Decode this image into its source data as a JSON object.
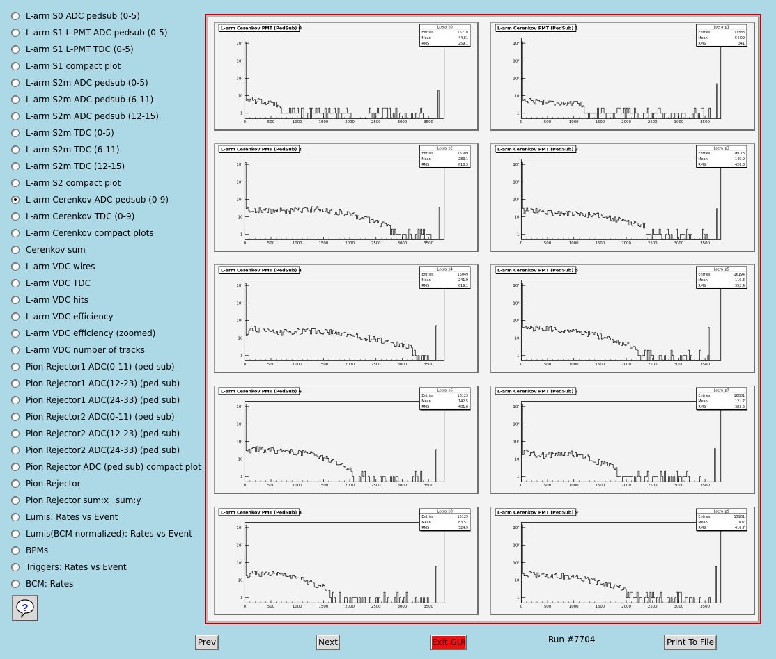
{
  "menu": {
    "selected_index": 11,
    "items": [
      "L-arm S0 ADC pedsub (0-5)",
      "L-arm S1 L-PMT ADC pedsub (0-5)",
      "L-arm S1 L-PMT TDC (0-5)",
      "L-arm S1 compact plot",
      "L-arm S2m ADC pedsub (0-5)",
      "L-arm S2m ADC pedsub (6-11)",
      "L-arm S2m ADC pedsub (12-15)",
      "L-arm S2m TDC (0-5)",
      "L-arm S2m TDC (6-11)",
      "L-arm S2m TDC (12-15)",
      "L-arm S2 compact plot",
      "L-arm Cerenkov ADC pedsub (0-9)",
      "L-arm Cerenkov TDC (0-9)",
      "L-arm Cerenkov compact plots",
      "Cerenkov sum",
      "L-arm VDC wires",
      "L-arm VDC TDC",
      "L-arm VDC hits",
      "L-arm VDC efficiency",
      "L-arm VDC efficiency (zoomed)",
      "L-arm VDC number of tracks",
      "Pion Rejector1 ADC(0-11) (ped sub)",
      "Pion Rejector1 ADC(12-23) (ped sub)",
      "Pion Rejector1 ADC(24-33) (ped sub)",
      "Pion Rejector2 ADC(0-11) (ped sub)",
      "Pion Rejector2 ADC(12-23) (ped sub)",
      "Pion Rejector2 ADC(24-33) (ped sub)",
      "Pion Rejector ADC (ped sub) compact plot",
      "Pion Rejector",
      "Pion Rejector sum:x _sum:y",
      "Lumis: Rates vs Event",
      "Lumis(BCM normalized): Rates vs Event",
      "BPMs",
      "Triggers: Rates vs Event",
      "BCM: Rates"
    ]
  },
  "help": {
    "icon": "question-mark-icon",
    "glyph": "?"
  },
  "buttons": {
    "prev": "Prev",
    "next": "Next",
    "exit": "Exit GUI",
    "print": "Print To File"
  },
  "run_label": "Run #7704",
  "colors": {
    "background": "#add8e6",
    "frame_border": "#c00000",
    "exit_button": "#ee1111"
  },
  "chart_data": [
    {
      "type": "histogram",
      "title": "L-arm Cerenkov PMT (PedSub) 0",
      "stats": {
        "name": "Lcera_p0",
        "entries_label": "Entries",
        "entries": "16218",
        "mean_label": "Mean",
        "mean": "44.81",
        "rms_label": "RMS",
        "rms": "259.1"
      },
      "y_log": true,
      "ylim": [
        0.5,
        20000
      ],
      "xlim": [
        0,
        3800
      ],
      "x_ticks": [
        0,
        500,
        1000,
        1500,
        2000,
        2500,
        3000,
        3500
      ],
      "y_ticks": [
        1,
        10,
        100,
        1000,
        10000
      ],
      "y_tick_labels": [
        "1",
        "10",
        "10²",
        "10³",
        "10⁴"
      ],
      "profile": [
        [
          0,
          8
        ],
        [
          100,
          6
        ],
        [
          400,
          4
        ],
        [
          700,
          3
        ],
        [
          1200,
          2
        ],
        [
          1700,
          1.8
        ],
        [
          2200,
          1.6
        ],
        [
          2700,
          1.4
        ],
        [
          3200,
          1.2
        ],
        [
          3500,
          1
        ]
      ],
      "spike": {
        "x": 3680,
        "y": 20
      }
    },
    {
      "type": "histogram",
      "title": "L-arm Cerenkov PMT (PedSub) 1",
      "stats": {
        "name": "Lcera_p1",
        "entries_label": "Entries",
        "entries": "17388",
        "mean_label": "Mean",
        "mean": "54.09",
        "rms_label": "RMS",
        "rms": "341"
      },
      "y_log": true,
      "ylim": [
        0.5,
        20000
      ],
      "xlim": [
        0,
        3800
      ],
      "x_ticks": [
        0,
        500,
        1000,
        1500,
        2000,
        2500,
        3000,
        3500
      ],
      "y_ticks": [
        1,
        10,
        100,
        1000,
        10000
      ],
      "y_tick_labels": [
        "1",
        "10",
        "10²",
        "10³",
        "10⁴"
      ],
      "profile": [
        [
          0,
          6
        ],
        [
          200,
          5
        ],
        [
          700,
          4
        ],
        [
          1200,
          3
        ],
        [
          1700,
          2.5
        ],
        [
          2200,
          2
        ],
        [
          2700,
          1.8
        ],
        [
          3200,
          1.5
        ],
        [
          3500,
          1.2
        ]
      ],
      "spike": {
        "x": 3720,
        "y": 50
      }
    },
    {
      "type": "histogram",
      "title": "L-arm Cerenkov PMT (PedSub) 2",
      "stats": {
        "name": "Lcera_p2",
        "entries_label": "Entries",
        "entries": "16309",
        "mean_label": "Mean",
        "mean": "283.1",
        "rms_label": "RMS",
        "rms": "618.3"
      },
      "y_log": true,
      "ylim": [
        0.5,
        20000
      ],
      "xlim": [
        0,
        3800
      ],
      "x_ticks": [
        0,
        500,
        1000,
        1500,
        2000,
        2500,
        3000,
        3500
      ],
      "y_ticks": [
        1,
        10,
        100,
        1000,
        10000
      ],
      "y_tick_labels": [
        "1",
        "10",
        "10²",
        "10³",
        "10⁴"
      ],
      "profile": [
        [
          0,
          25
        ],
        [
          150,
          25
        ],
        [
          500,
          22
        ],
        [
          1000,
          22
        ],
        [
          1400,
          28
        ],
        [
          1800,
          18
        ],
        [
          2200,
          10
        ],
        [
          2600,
          4
        ],
        [
          3000,
          2
        ],
        [
          3400,
          1.3
        ],
        [
          3600,
          1
        ]
      ],
      "spike": {
        "x": 3700,
        "y": 35
      }
    },
    {
      "type": "histogram",
      "title": "L-arm Cerenkov PMT (PedSub) 3",
      "stats": {
        "name": "Lcera_p3",
        "entries_label": "Entries",
        "entries": "16073",
        "mean_label": "Mean",
        "mean": "145.9",
        "rms_label": "RMS",
        "rms": "426.3"
      },
      "y_log": true,
      "ylim": [
        0.5,
        20000
      ],
      "xlim": [
        0,
        3800
      ],
      "x_ticks": [
        0,
        500,
        1000,
        1500,
        2000,
        2500,
        3000,
        3500
      ],
      "y_ticks": [
        1,
        10,
        100,
        1000,
        10000
      ],
      "y_tick_labels": [
        "1",
        "10",
        "10²",
        "10³",
        "10⁴"
      ],
      "profile": [
        [
          0,
          20
        ],
        [
          150,
          25
        ],
        [
          500,
          18
        ],
        [
          1000,
          15
        ],
        [
          1500,
          12
        ],
        [
          2000,
          5
        ],
        [
          2500,
          2.5
        ],
        [
          3000,
          1.5
        ],
        [
          3400,
          1.1
        ]
      ],
      "spike": {
        "x": 3720,
        "y": 30
      }
    },
    {
      "type": "histogram",
      "title": "L-arm Cerenkov PMT (PedSub) 4",
      "stats": {
        "name": "Lcera_p4",
        "entries_label": "Entries",
        "entries": "16049",
        "mean_label": "Mean",
        "mean": "241.9",
        "rms_label": "RMS",
        "rms": "619.1"
      },
      "y_log": true,
      "ylim": [
        0.5,
        20000
      ],
      "xlim": [
        0,
        3800
      ],
      "x_ticks": [
        0,
        500,
        1000,
        1500,
        2000,
        2500,
        3000,
        3500
      ],
      "y_ticks": [
        1,
        10,
        100,
        1000,
        10000
      ],
      "y_tick_labels": [
        "1",
        "10",
        "10²",
        "10³",
        "10⁴"
      ],
      "profile": [
        [
          0,
          12
        ],
        [
          150,
          40
        ],
        [
          300,
          25
        ],
        [
          700,
          20
        ],
        [
          1200,
          25
        ],
        [
          1700,
          20
        ],
        [
          2200,
          12
        ],
        [
          2700,
          6
        ],
        [
          3200,
          3
        ],
        [
          3500,
          2
        ]
      ],
      "spike": {
        "x": 3640,
        "y": 50
      }
    },
    {
      "type": "histogram",
      "title": "L-arm Cerenkov PMT (PedSub) 5",
      "stats": {
        "name": "Lcera_p5",
        "entries_label": "Entries",
        "entries": "16194",
        "mean_label": "Mean",
        "mean": "116.3",
        "rms_label": "RMS",
        "rms": "352.4"
      },
      "y_log": true,
      "ylim": [
        0.5,
        20000
      ],
      "xlim": [
        0,
        3800
      ],
      "x_ticks": [
        0,
        500,
        1000,
        1500,
        2000,
        2500,
        3000,
        3500
      ],
      "y_ticks": [
        1,
        10,
        100,
        1000,
        10000
      ],
      "y_tick_labels": [
        "1",
        "10",
        "10²",
        "10³",
        "10⁴"
      ],
      "profile": [
        [
          0,
          40
        ],
        [
          200,
          35
        ],
        [
          600,
          30
        ],
        [
          1000,
          25
        ],
        [
          1400,
          15
        ],
        [
          1800,
          6
        ],
        [
          2200,
          3
        ],
        [
          2700,
          1.5
        ],
        [
          3200,
          1.1
        ]
      ],
      "spike": {
        "x": 3560,
        "y": 40
      }
    },
    {
      "type": "histogram",
      "title": "L-arm Cerenkov PMT (PedSub) 6",
      "stats": {
        "name": "Lcera_p6",
        "entries_label": "Entries",
        "entries": "16123",
        "mean_label": "Mean",
        "mean": "142.5",
        "rms_label": "RMS",
        "rms": "481.6"
      },
      "y_log": true,
      "ylim": [
        0.5,
        20000
      ],
      "xlim": [
        0,
        3800
      ],
      "x_ticks": [
        0,
        500,
        1000,
        1500,
        2000,
        2500,
        3000,
        3500
      ],
      "y_ticks": [
        1,
        10,
        100,
        1000,
        10000
      ],
      "y_tick_labels": [
        "1",
        "10",
        "10²",
        "10³",
        "10⁴"
      ],
      "profile": [
        [
          0,
          20
        ],
        [
          150,
          35
        ],
        [
          600,
          30
        ],
        [
          1000,
          25
        ],
        [
          1400,
          15
        ],
        [
          1800,
          5
        ],
        [
          2200,
          2
        ],
        [
          2700,
          1.3
        ],
        [
          3200,
          1.1
        ]
      ],
      "spike": {
        "x": 3640,
        "y": 35
      }
    },
    {
      "type": "histogram",
      "title": "L-arm Cerenkov PMT (PedSub) 7",
      "stats": {
        "name": "Lcera_p7",
        "entries_label": "Entries",
        "entries": "16081",
        "mean_label": "Mean",
        "mean": "121.7",
        "rms_label": "RMS",
        "rms": "383.5"
      },
      "y_log": true,
      "ylim": [
        0.5,
        20000
      ],
      "xlim": [
        0,
        3800
      ],
      "x_ticks": [
        0,
        500,
        1000,
        1500,
        2000,
        2500,
        3000,
        3500
      ],
      "y_ticks": [
        1,
        10,
        100,
        1000,
        10000
      ],
      "y_tick_labels": [
        "1",
        "10",
        "10²",
        "10³",
        "10⁴"
      ],
      "profile": [
        [
          0,
          25
        ],
        [
          200,
          20
        ],
        [
          500,
          15
        ],
        [
          800,
          22
        ],
        [
          1100,
          18
        ],
        [
          1500,
          6
        ],
        [
          1900,
          2.5
        ],
        [
          2300,
          1.5
        ],
        [
          2800,
          1.2
        ],
        [
          3300,
          1.1
        ]
      ],
      "spike": {
        "x": 3680,
        "y": 40
      }
    },
    {
      "type": "histogram",
      "title": "L-arm Cerenkov PMT (PedSub) 8",
      "stats": {
        "name": "Lcera_p8",
        "entries_label": "Entries",
        "entries": "16129",
        "mean_label": "Mean",
        "mean": "83.51",
        "rms_label": "RMS",
        "rms": "324.9"
      },
      "y_log": true,
      "ylim": [
        0.5,
        20000
      ],
      "xlim": [
        0,
        3800
      ],
      "x_ticks": [
        0,
        500,
        1000,
        1500,
        2000,
        2500,
        3000,
        3500
      ],
      "y_ticks": [
        1,
        10,
        100,
        1000,
        10000
      ],
      "y_tick_labels": [
        "1",
        "10",
        "10²",
        "10³",
        "10⁴"
      ],
      "profile": [
        [
          0,
          18
        ],
        [
          200,
          25
        ],
        [
          600,
          20
        ],
        [
          1000,
          12
        ],
        [
          1400,
          5
        ],
        [
          1800,
          2
        ],
        [
          2300,
          1.4
        ],
        [
          2800,
          1.2
        ],
        [
          3300,
          1.1
        ]
      ],
      "spike": {
        "x": 3640,
        "y": 60
      }
    },
    {
      "type": "histogram",
      "title": "L-arm Cerenkov PMT (PedSub) 9",
      "stats": {
        "name": "Lcera_p9",
        "entries_label": "Entries",
        "entries": "15981",
        "mean_label": "Mean",
        "mean": "107",
        "rms_label": "RMS",
        "rms": "416.7"
      },
      "y_log": true,
      "ylim": [
        0.5,
        20000
      ],
      "xlim": [
        0,
        3800
      ],
      "x_ticks": [
        0,
        500,
        1000,
        1500,
        2000,
        2500,
        3000,
        3500
      ],
      "y_ticks": [
        1,
        10,
        100,
        1000,
        10000
      ],
      "y_tick_labels": [
        "1",
        "10",
        "10²",
        "10³",
        "10⁴"
      ],
      "profile": [
        [
          0,
          20
        ],
        [
          200,
          22
        ],
        [
          600,
          18
        ],
        [
          1000,
          15
        ],
        [
          1400,
          8
        ],
        [
          1800,
          4
        ],
        [
          2300,
          2
        ],
        [
          2800,
          1.5
        ],
        [
          3300,
          1.2
        ]
      ],
      "spike": {
        "x": 3700,
        "y": 60
      }
    }
  ]
}
